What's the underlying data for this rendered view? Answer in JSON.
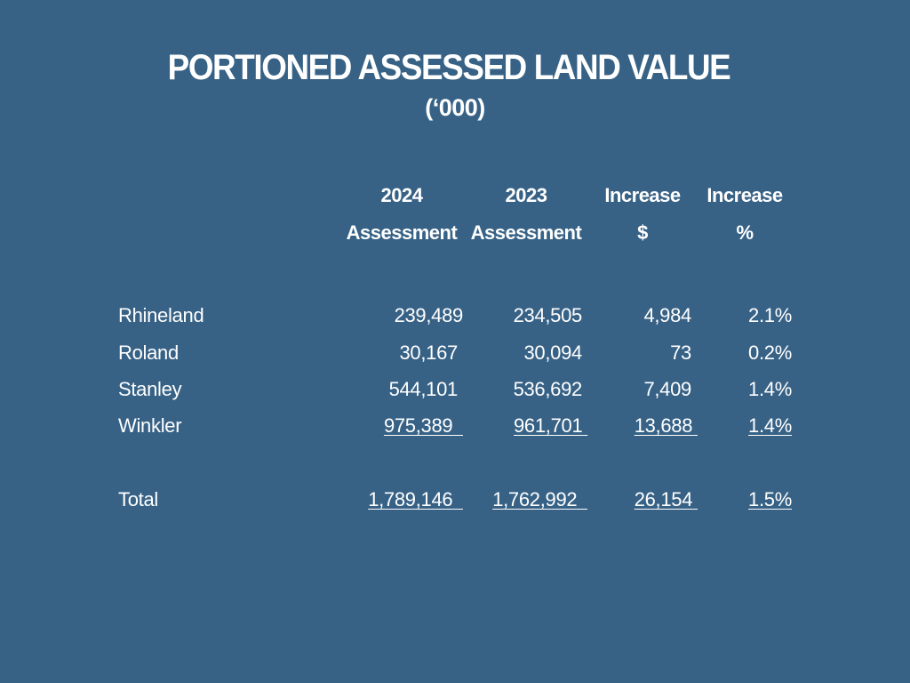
{
  "slide": {
    "title": "PORTIONED ASSESSED LAND VALUE",
    "subtitle": "(‘000)"
  },
  "table": {
    "headers": [
      {
        "line1": "2024",
        "line2": "Assessment"
      },
      {
        "line1": "2023",
        "line2": "Assessment"
      },
      {
        "line1": "Increase",
        "line2": "$"
      },
      {
        "line1": "Increase",
        "line2": "%"
      }
    ],
    "rows": [
      {
        "label": "Rhineland",
        "a2024": "239,489",
        "a2023": "234,505",
        "inc": "4,984",
        "pct": "2.1%"
      },
      {
        "label": "Roland",
        "a2024": "30,167",
        "a2023": "30,094",
        "inc": "73",
        "pct": "0.2%"
      },
      {
        "label": "Stanley",
        "a2024": "544,101",
        "a2023": "536,692",
        "inc": "7,409",
        "pct": "1.4%"
      },
      {
        "label": "Winkler",
        "a2024": "975,389",
        "a2023": "961,701",
        "inc": "13,688",
        "pct": "1.4%"
      }
    ],
    "total": {
      "label": "Total",
      "a2024": "1,789,146",
      "a2023": "1,762,992",
      "inc": "26,154",
      "pct": "1.5%"
    }
  }
}
